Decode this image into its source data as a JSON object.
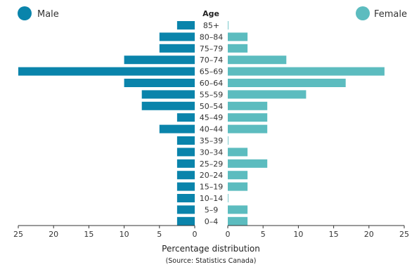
{
  "chart_data": {
    "type": "bar",
    "orientation": "horizontal",
    "title": "Age",
    "xlabel": "Percentage distribution",
    "source": "(Source: Statistics Canada)",
    "categories": [
      "85+",
      "80–84",
      "75–79",
      "70–74",
      "65–69",
      "60–64",
      "55–59",
      "50–54",
      "45–49",
      "40–44",
      "35–39",
      "30–34",
      "25–29",
      "20–24",
      "15–19",
      "10–14",
      "5–9",
      "0–4"
    ],
    "series": [
      {
        "name": "Male",
        "color": "#0a84ab",
        "side": "left",
        "values": [
          2.5,
          5,
          5,
          10,
          25,
          10,
          7.5,
          7.5,
          2.5,
          5,
          2.5,
          2.5,
          2.5,
          2.5,
          2.5,
          2.5,
          2.5,
          2.5
        ]
      },
      {
        "name": "Female",
        "color": "#5cbcbf",
        "side": "right",
        "values": [
          0,
          2.8,
          2.8,
          8.3,
          22.2,
          16.7,
          11.1,
          5.6,
          5.6,
          5.6,
          0,
          2.8,
          5.6,
          2.8,
          2.8,
          0,
          2.8,
          2.8
        ]
      }
    ],
    "left_ticks": [
      "25",
      "20",
      "15",
      "10",
      "5",
      "0"
    ],
    "right_ticks": [
      "0",
      "5",
      "10",
      "15",
      "20",
      "25"
    ],
    "xlim": [
      0,
      25
    ],
    "legend": "top-left and top-right",
    "grid": false
  }
}
